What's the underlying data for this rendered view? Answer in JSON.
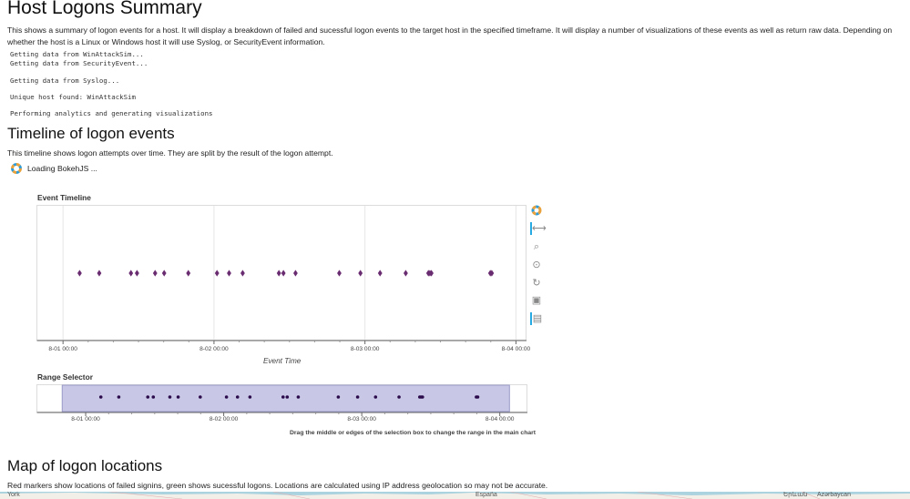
{
  "header": {
    "title": "Host Logons Summary",
    "description": "This shows a summary of logon events for a host. It will display a breakdown of failed and sucessful logon events to the target host in the specified timeframe. It will display a number of visualizations of these events as well as return raw data. Depending on whether the host is a Linux or Windows host it will use Syslog, or SecurityEvent information."
  },
  "log_lines": [
    "Getting data from WinAttackSim...",
    "Getting data from SecurityEvent...",
    "Getting data from Syslog...",
    "Unique host found: WinAttackSim",
    "Performing analytics and generating visualizations"
  ],
  "timeline_section": {
    "heading": "Timeline of logon events",
    "description": "This timeline shows logon attempts over time. They are split by the result of the logon attempt.",
    "loading_text": "Loading BokehJS ..."
  },
  "chart_data": [
    {
      "type": "scatter",
      "title": "Event Timeline",
      "xlabel": "Event Time",
      "x_tick_labels": [
        "8-01 00:00",
        "8-02 00:00",
        "8-03 00:00",
        "8-04 00:00"
      ],
      "xlim_days": [
        -0.17,
        3.07
      ],
      "marker": "diamond",
      "marker_color": "#6a2c70",
      "x_days": [
        0.11,
        0.24,
        0.45,
        0.49,
        0.61,
        0.67,
        0.83,
        1.02,
        1.1,
        1.19,
        1.43,
        1.46,
        1.54,
        1.83,
        1.97,
        2.1,
        2.27,
        2.42,
        2.43,
        2.44,
        2.83,
        2.84
      ],
      "grid": true
    },
    {
      "type": "scatter",
      "title": "Range Selector",
      "x_tick_labels": [
        "8-01 00:00",
        "8-02 00:00",
        "8-03 00:00",
        "8-04 00:00"
      ],
      "xlim_days": [
        -0.35,
        3.2
      ],
      "marker": "circle",
      "marker_color": "#2a0a4a",
      "selection_days": [
        -0.17,
        3.07
      ],
      "x_days": [
        0.11,
        0.24,
        0.45,
        0.49,
        0.61,
        0.67,
        0.83,
        1.02,
        1.1,
        1.19,
        1.43,
        1.46,
        1.54,
        1.83,
        1.97,
        2.1,
        2.27,
        2.42,
        2.43,
        2.44,
        2.83,
        2.84
      ],
      "hint": "Drag the middle or edges of the selection box to change the range in the main chart"
    }
  ],
  "toolbar": {
    "tools": [
      "bokeh-logo-icon",
      "pan-icon",
      "box-zoom-icon",
      "wheel-zoom-icon",
      "reset-icon",
      "save-icon",
      "hover-icon"
    ]
  },
  "map_section": {
    "heading": "Map of logon locations",
    "description": "Red markers show locations of failed signins, green shows sucessful logons. Locations are calculated using IP address geolocation so may not be accurate.",
    "map_labels": [
      "York",
      "España",
      "Երևան",
      "Azərbaycan"
    ]
  },
  "colors": {
    "selection_fill": "#c8c8e6",
    "grid": "#e6e6e6",
    "map_water": "#aad3df"
  }
}
